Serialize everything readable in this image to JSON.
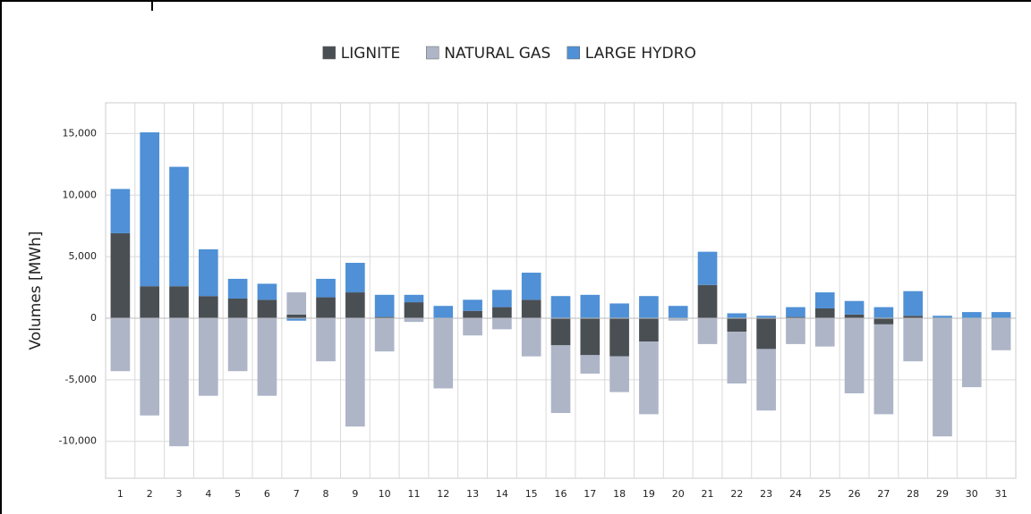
{
  "chart_data": {
    "type": "bar",
    "stacked": true,
    "ylabel": "Volumes [MWh]",
    "categories": [
      "1",
      "2",
      "3",
      "4",
      "5",
      "6",
      "7",
      "8",
      "9",
      "10",
      "11",
      "12",
      "13",
      "14",
      "15",
      "16",
      "17",
      "18",
      "19",
      "20",
      "21",
      "22",
      "23",
      "24",
      "25",
      "26",
      "27",
      "28",
      "29",
      "30",
      "31"
    ],
    "series": [
      {
        "name": "LIGNITE",
        "color": "#4a4f54",
        "values": [
          6900,
          2600,
          2600,
          1800,
          1600,
          1500,
          300,
          1700,
          2100,
          100,
          1300,
          0,
          600,
          900,
          1500,
          -2200,
          -3000,
          -3100,
          -1900,
          0,
          2700,
          -1100,
          -2500,
          100,
          800,
          300,
          -500,
          200,
          0,
          0,
          0
        ]
      },
      {
        "name": "NATURAL GAS",
        "color": "#adb5c7",
        "values": [
          -4300,
          -7900,
          -10400,
          -6300,
          -4300,
          -6300,
          1800,
          -3500,
          -8800,
          -2700,
          -300,
          -5700,
          -1400,
          -900,
          -3100,
          -5500,
          -1500,
          -2900,
          -5900,
          -200,
          -2100,
          -4200,
          -5000,
          -2100,
          -2300,
          -6100,
          -7300,
          -3500,
          -9600,
          -5600,
          -2600
        ]
      },
      {
        "name": "LARGE HYDRO",
        "color": "#4f90d6",
        "values": [
          3600,
          12500,
          9700,
          3800,
          1600,
          1300,
          -200,
          1500,
          2400,
          1800,
          600,
          1000,
          900,
          1400,
          2200,
          1800,
          1900,
          1200,
          1800,
          1000,
          2700,
          400,
          200,
          800,
          1300,
          1100,
          900,
          2000,
          200,
          500,
          500
        ]
      }
    ],
    "ylim": [
      -13000,
      17500
    ],
    "yticks": [
      {
        "value": -10000,
        "label": "-10,000"
      },
      {
        "value": -5000,
        "label": "-5,000"
      },
      0,
      {
        "value": 5000,
        "label": "5,000"
      },
      {
        "value": 10000,
        "label": "10,000"
      },
      {
        "value": 15000,
        "label": "15,000"
      }
    ],
    "grid": true
  }
}
